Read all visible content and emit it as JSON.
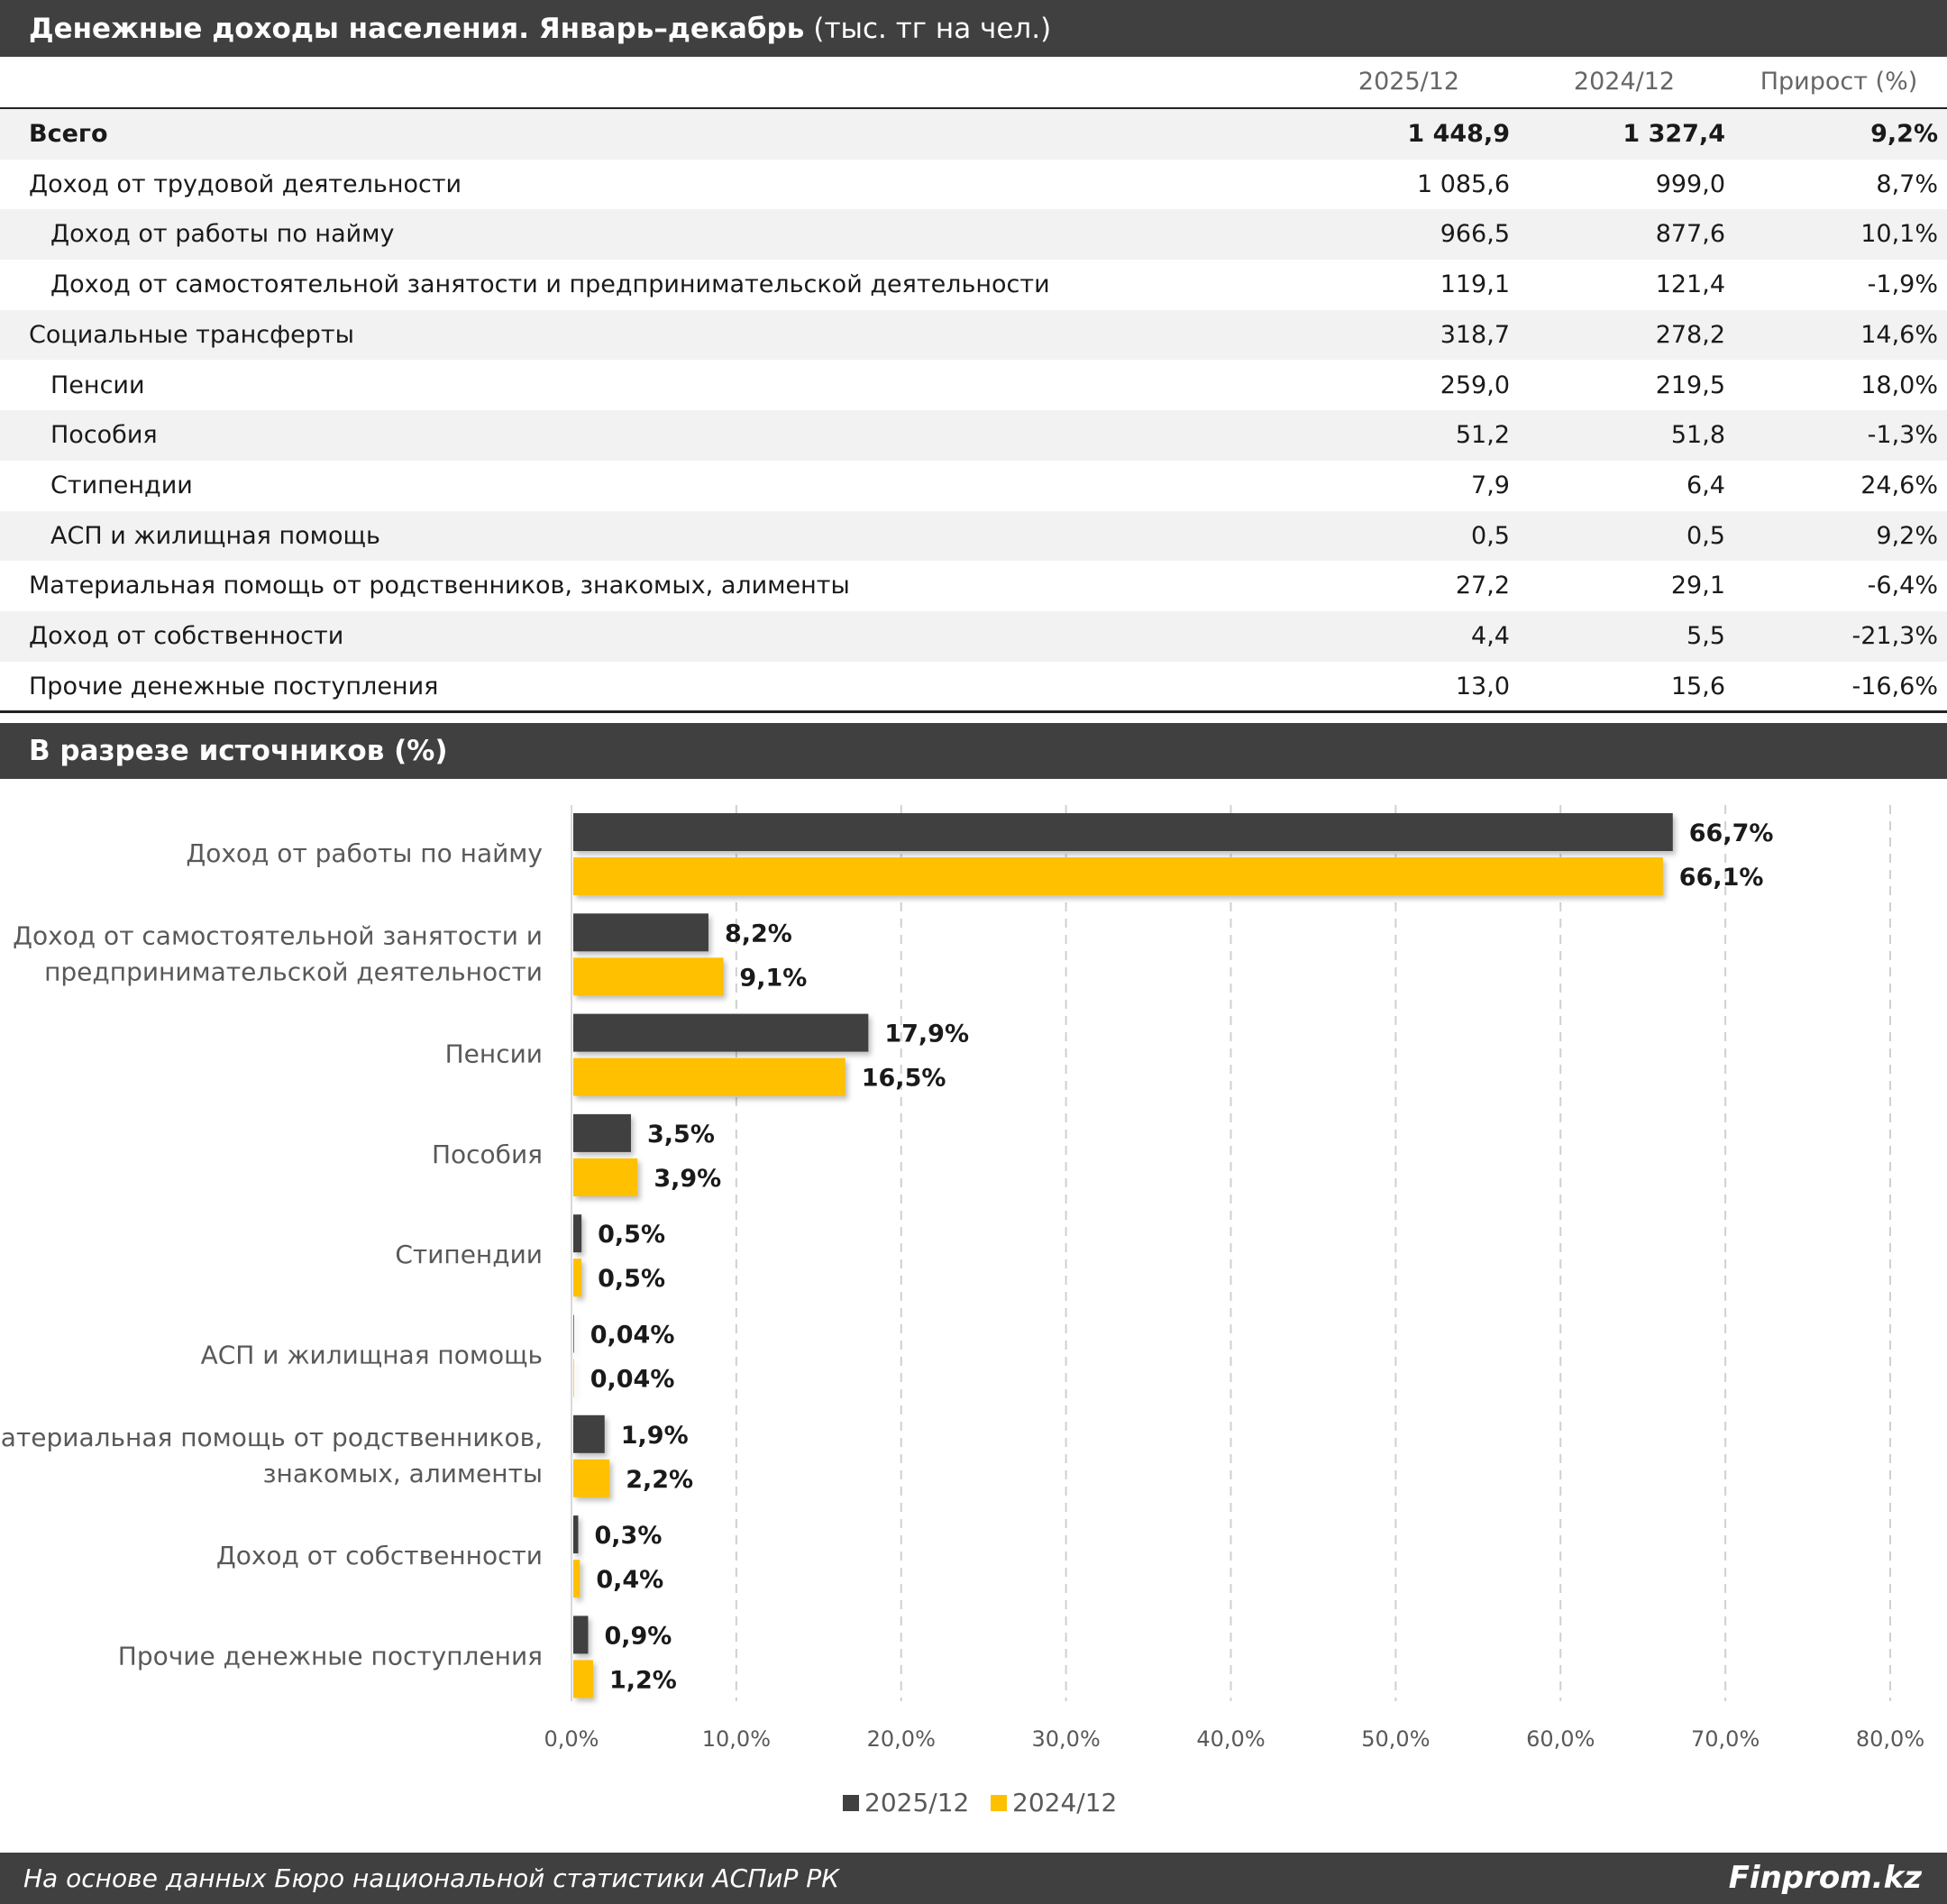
{
  "header": {
    "title_bold": "Денежные доходы населения. Январь–декабрь",
    "title_unit": "(тыс. тг на чел.)"
  },
  "table": {
    "columns": [
      "2025/12",
      "2024/12",
      "Прирост (%)"
    ],
    "rows": [
      {
        "label": "Всего",
        "v2025": "1 448,9",
        "v2024": "1 327,4",
        "growth": "9,2%",
        "level": 0,
        "bold": true
      },
      {
        "label": "Доход от трудовой деятельности",
        "v2025": "1 085,6",
        "v2024": "999,0",
        "growth": "8,7%",
        "level": 0
      },
      {
        "label": "Доход от работы по найму",
        "v2025": "966,5",
        "v2024": "877,6",
        "growth": "10,1%",
        "level": 1
      },
      {
        "label": "Доход от самостоятельной занятости и предпринимательской деятельности",
        "v2025": "119,1",
        "v2024": "121,4",
        "growth": "-1,9%",
        "level": 1
      },
      {
        "label": "Социальные трансферты",
        "v2025": "318,7",
        "v2024": "278,2",
        "growth": "14,6%",
        "level": 0
      },
      {
        "label": "Пенсии",
        "v2025": "259,0",
        "v2024": "219,5",
        "growth": "18,0%",
        "level": 1
      },
      {
        "label": "Пособия",
        "v2025": "51,2",
        "v2024": "51,8",
        "growth": "-1,3%",
        "level": 1
      },
      {
        "label": "Стипендии",
        "v2025": "7,9",
        "v2024": "6,4",
        "growth": "24,6%",
        "level": 1
      },
      {
        "label": "АСП и жилищная помощь",
        "v2025": "0,5",
        "v2024": "0,5",
        "growth": "9,2%",
        "level": 1
      },
      {
        "label": "Материальная помощь от родственников, знакомых, алименты",
        "v2025": "27,2",
        "v2024": "29,1",
        "growth": "-6,4%",
        "level": 0
      },
      {
        "label": "Доход от собственности",
        "v2025": "4,4",
        "v2024": "5,5",
        "growth": "-21,3%",
        "level": 0
      },
      {
        "label": "Прочие денежные поступления",
        "v2025": "13,0",
        "v2024": "15,6",
        "growth": "-16,6%",
        "level": 0
      }
    ]
  },
  "section_title": "В разрезе источников (%)",
  "chart_data": {
    "type": "bar",
    "orientation": "horizontal",
    "categories": [
      [
        "Доход от работы по найму"
      ],
      [
        "Доход от самостоятельной занятости и",
        "предпринимательской деятельности"
      ],
      [
        "Пенсии"
      ],
      [
        "Пособия"
      ],
      [
        "Стипендии"
      ],
      [
        "АСП и жилищная помощь"
      ],
      [
        "Материальная помощь от родственников,",
        "знакомых, алименты"
      ],
      [
        "Доход от собственности"
      ],
      [
        "Прочие денежные поступления"
      ]
    ],
    "series": [
      {
        "name": "2025/12",
        "color": "#404040",
        "values": [
          66.7,
          8.2,
          17.9,
          3.5,
          0.5,
          0.04,
          1.9,
          0.3,
          0.9
        ],
        "labels": [
          "66,7%",
          "8,2%",
          "17,9%",
          "3,5%",
          "0,5%",
          "0,04%",
          "1,9%",
          "0,3%",
          "0,9%"
        ]
      },
      {
        "name": "2024/12",
        "color": "#FFC000",
        "values": [
          66.1,
          9.1,
          16.5,
          3.9,
          0.5,
          0.04,
          2.2,
          0.4,
          1.2
        ],
        "labels": [
          "66,1%",
          "9,1%",
          "16,5%",
          "3,9%",
          "0,5%",
          "0,04%",
          "2,2%",
          "0,4%",
          "1,2%"
        ]
      }
    ],
    "xlim": [
      0,
      80
    ],
    "xticks": [
      "0,0%",
      "10,0%",
      "20,0%",
      "30,0%",
      "40,0%",
      "50,0%",
      "60,0%",
      "70,0%",
      "80,0%"
    ],
    "grid": true,
    "legend": "bottom"
  },
  "footer": {
    "source": "На основе данных Бюро национальной статистики АСПиР РК",
    "logo": "Finprom.kz"
  }
}
